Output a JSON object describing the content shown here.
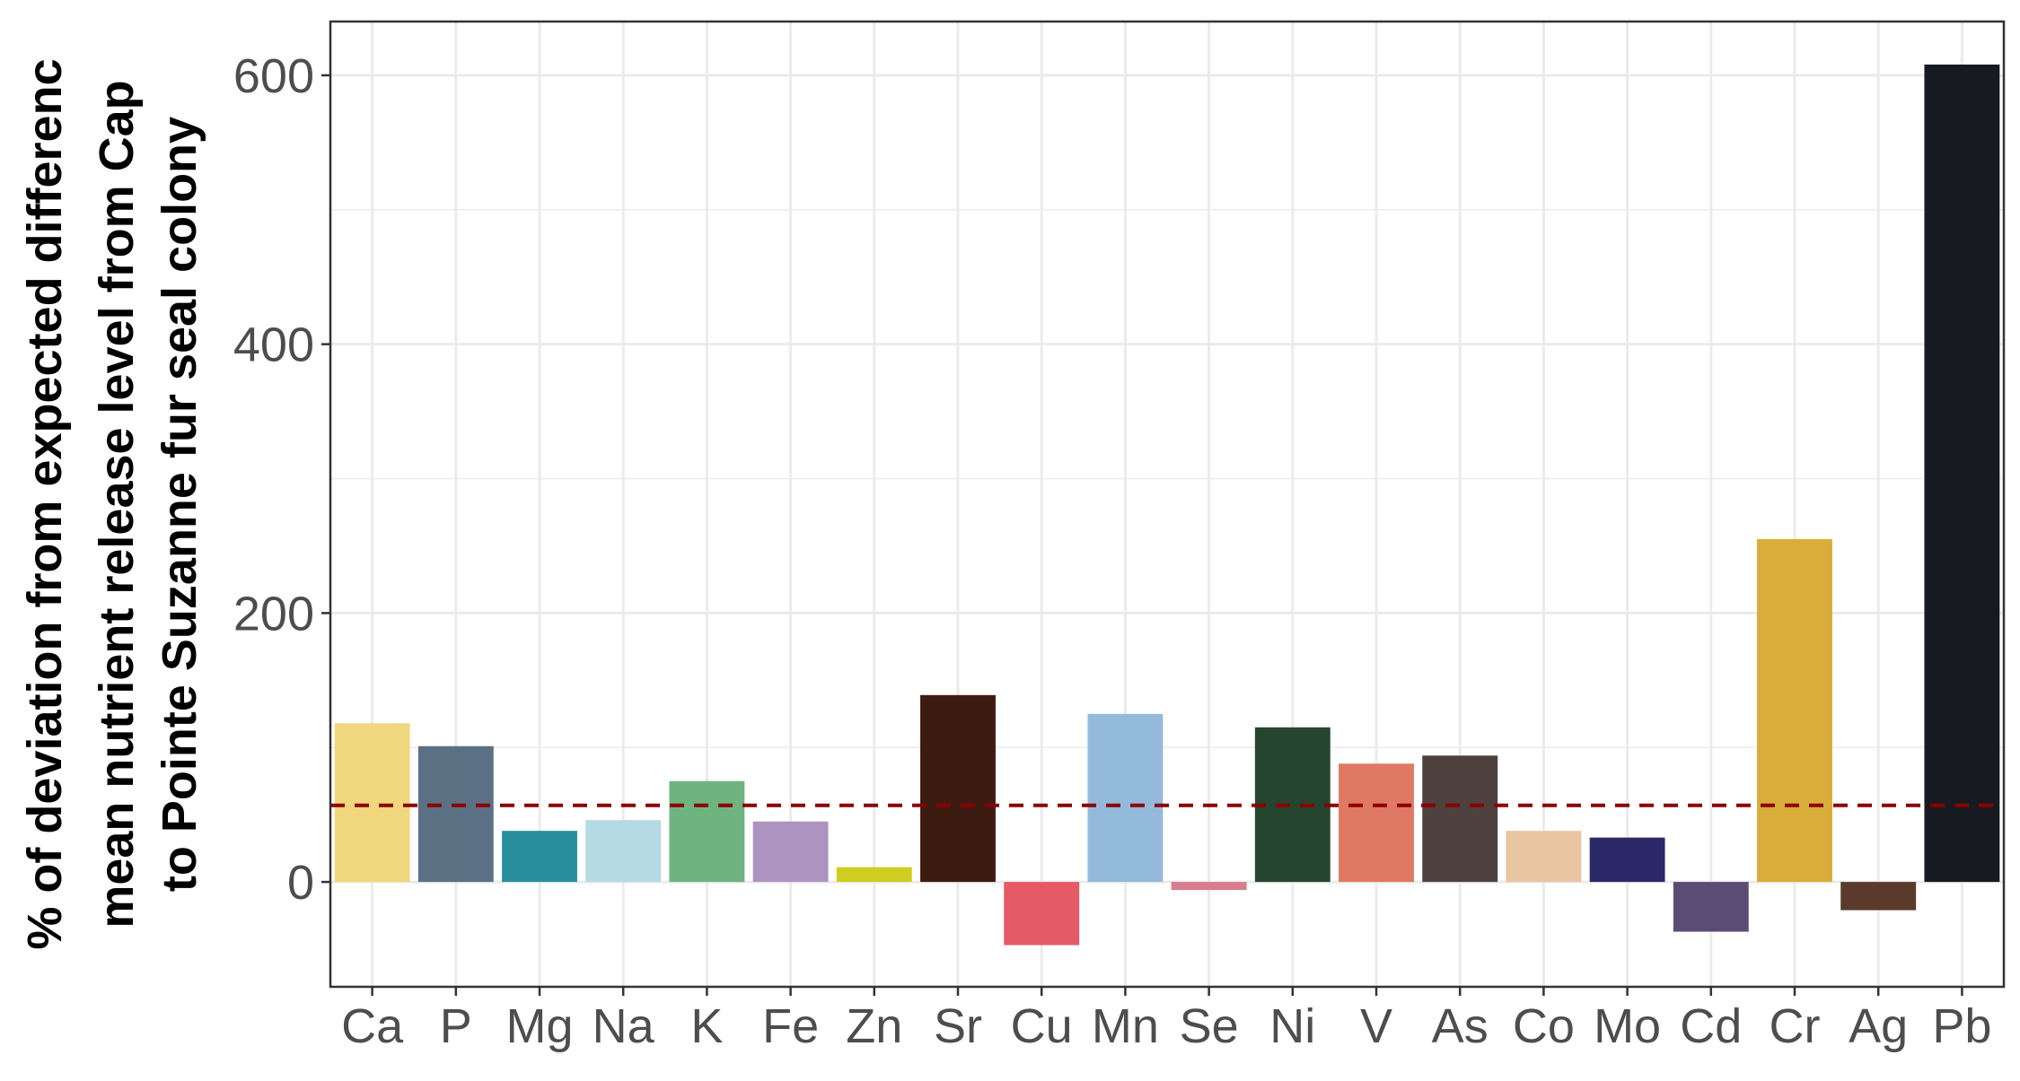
{
  "chart_data": {
    "type": "bar",
    "title": "",
    "xlabel": "",
    "ylabel_lines": [
      "% of deviation from expected differenc",
      "mean nutrient release level from Cap",
      "to Pointe Suzanne fur seal colony"
    ],
    "categories": [
      "Ca",
      "P",
      "Mg",
      "Na",
      "K",
      "Fe",
      "Zn",
      "Sr",
      "Cu",
      "Mn",
      "Se",
      "Ni",
      "V",
      "As",
      "Co",
      "Mo",
      "Cd",
      "Cr",
      "Ag",
      "Pb"
    ],
    "values": [
      118,
      101,
      38,
      46,
      75,
      45,
      11,
      139,
      -47,
      125,
      -6,
      115,
      88,
      94,
      38,
      33,
      -37,
      255,
      -21,
      608
    ],
    "colors": [
      "#f0d67c",
      "#5b7083",
      "#298e9c",
      "#b4dbe4",
      "#6fb480",
      "#ad94c0",
      "#cfcd1f",
      "#3c1b10",
      "#e65a66",
      "#93bada",
      "#d77d8f",
      "#26452f",
      "#e07963",
      "#4e403d",
      "#eac5a2",
      "#2b2968",
      "#5b4c74",
      "#d9ad39",
      "#5a3a2a",
      "#171a20"
    ],
    "reference_line": 57,
    "reference_line_color": "#8b0000",
    "ylim": [
      -78,
      640
    ],
    "yticks": [
      0,
      200,
      400,
      600
    ],
    "ytick_labels": [
      "0",
      "200",
      "400",
      "600"
    ],
    "grid": true,
    "legend": "none"
  }
}
